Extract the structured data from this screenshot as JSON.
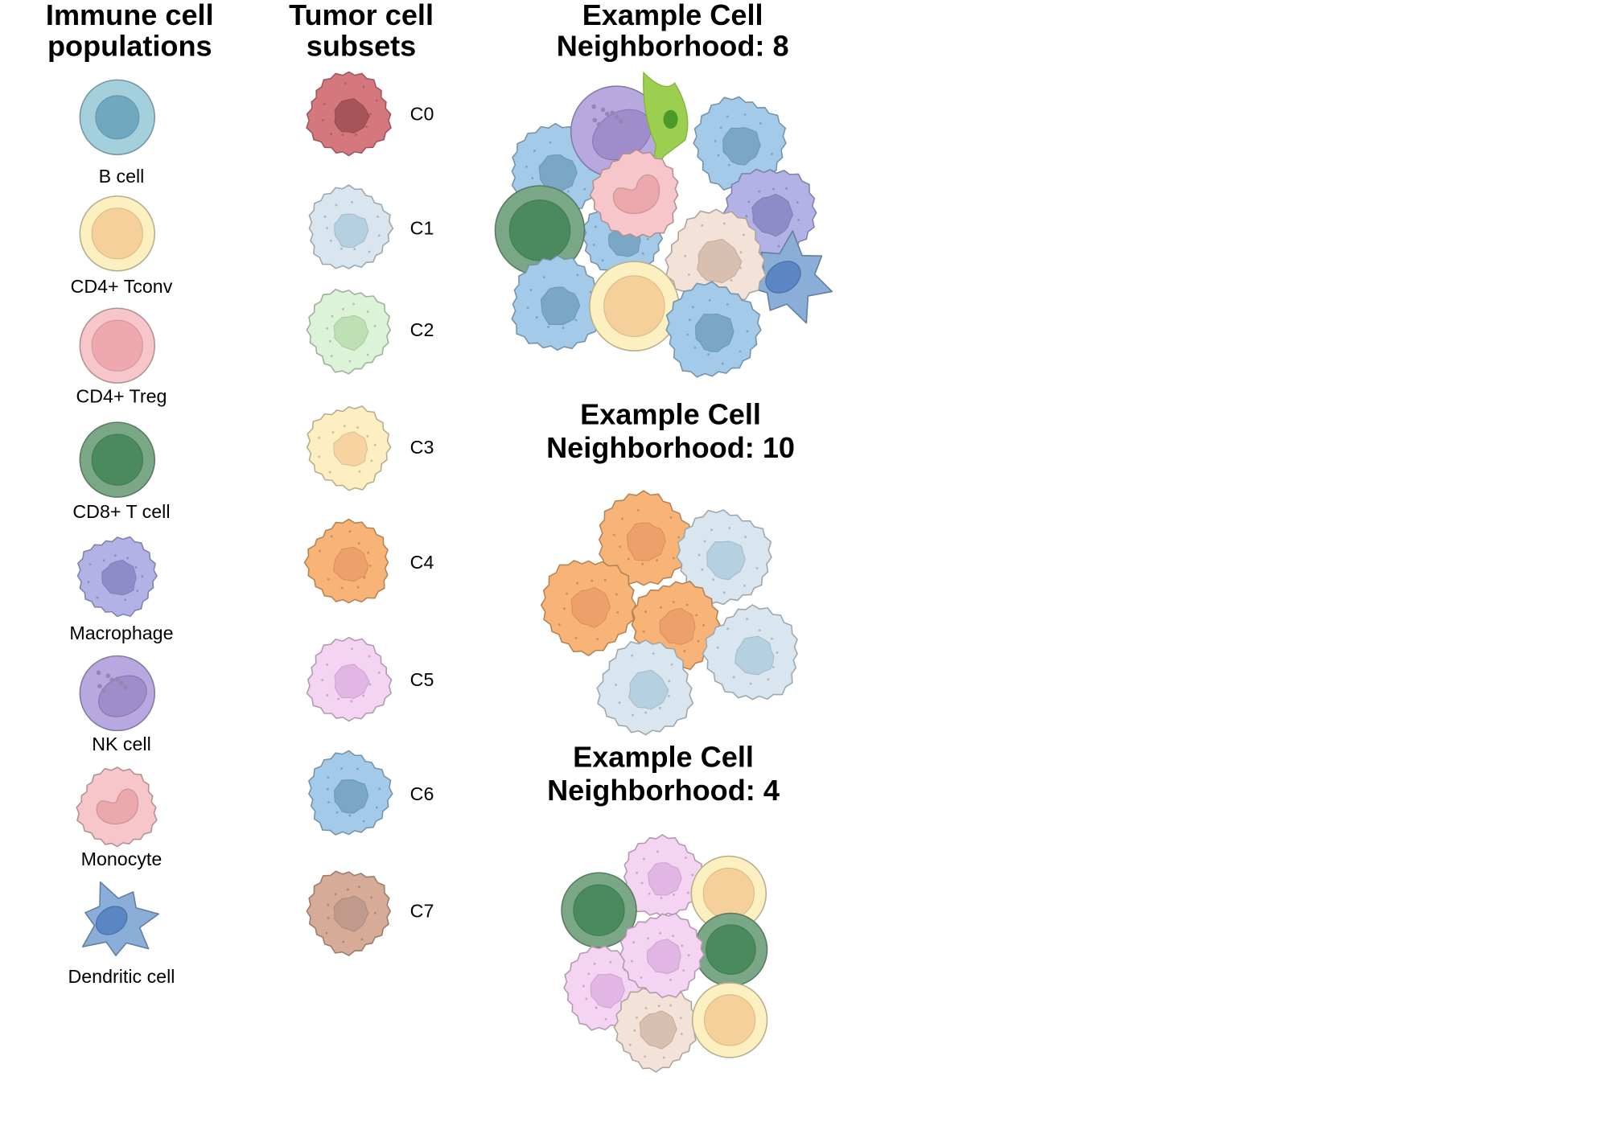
{
  "immune": {
    "title": [
      "Immune cell",
      "populations"
    ],
    "items": [
      {
        "label": "B cell",
        "color": "#a3d0dc",
        "nucleus": "#6fa8bf"
      },
      {
        "label": "CD4+ Tconv",
        "color": "#fdf0c0",
        "nucleus": "#f6d09a"
      },
      {
        "label": "CD4+ Treg",
        "color": "#f7c6ca",
        "nucleus": "#eea9ae"
      },
      {
        "label": "CD8+ T cell",
        "color": "#7aa886",
        "nucleus": "#4a8a5c"
      },
      {
        "label": "Macrophage",
        "color": "#b3b2e6",
        "nucleus": "#8f8bc8"
      },
      {
        "label": "NK cell",
        "color": "#b7a8e0",
        "nucleus": "#9e8ccb"
      },
      {
        "label": "Monocyte",
        "color": "#f7c6ca",
        "nucleus": "#eba8ad"
      },
      {
        "label": "Dendritic cell",
        "color": "#8aaed8",
        "nucleus": "#5b86c4"
      }
    ]
  },
  "tumor": {
    "title": [
      "Tumor cell",
      "subsets"
    ],
    "items": [
      {
        "label": "C0",
        "color": "#d4787e",
        "nucleus": "#a85357"
      },
      {
        "label": "C1",
        "color": "#d9e6ef",
        "nucleus": "#b5d0e0"
      },
      {
        "label": "C2",
        "color": "#dcf3d8",
        "nucleus": "#bde0b5"
      },
      {
        "label": "C3",
        "color": "#fdefc2",
        "nucleus": "#f6d3a0"
      },
      {
        "label": "C4",
        "color": "#f8b476",
        "nucleus": "#eea06a"
      },
      {
        "label": "C5",
        "color": "#f4d4f2",
        "nucleus": "#e1b6e4"
      },
      {
        "label": "C6",
        "color": "#a3cbe9",
        "nucleus": "#7aa8c4"
      },
      {
        "label": "C7",
        "color": "#d6ab98",
        "nucleus": "#c09a8a"
      }
    ]
  },
  "neighborhoods": [
    {
      "title": [
        "Example Cell",
        "Neighborhood: 8"
      ]
    },
    {
      "title": [
        "Example Cell",
        "Neighborhood: 10"
      ]
    },
    {
      "title": [
        "Example Cell",
        "Neighborhood: 4"
      ]
    }
  ]
}
